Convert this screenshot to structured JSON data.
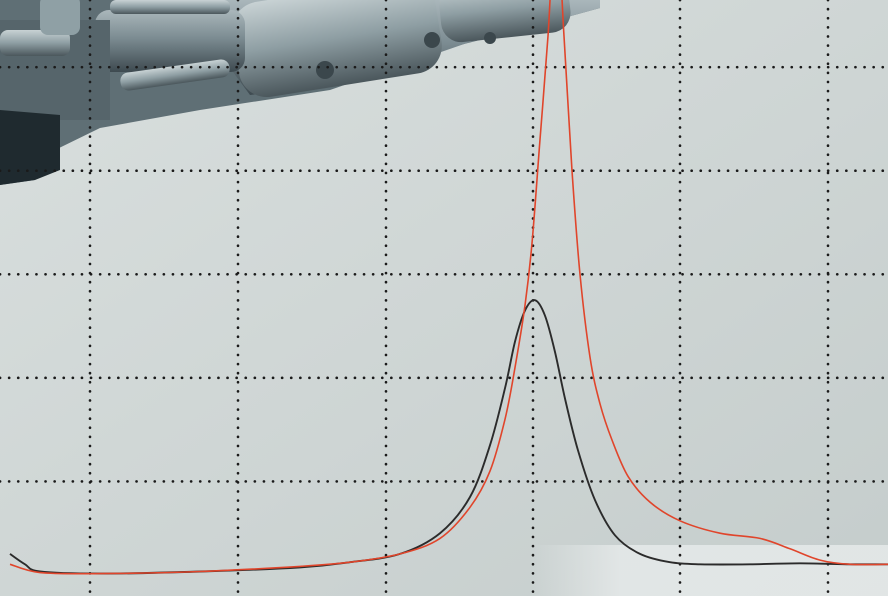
{
  "chart_data": {
    "type": "line",
    "title": "",
    "xlabel": "",
    "ylabel": "",
    "xlim": [
      0,
      888
    ],
    "ylim": [
      0,
      5.6
    ],
    "grid": true,
    "grid_style": "dotted",
    "legend": "none",
    "background_photo": "machinery-cylinder-photo",
    "colors": {
      "background": "#cfd6d5",
      "grid": "#1a1a1a",
      "series_red": "#e0452b",
      "series_black": "#2b2b2b",
      "machinery": "#7f9197"
    },
    "series": [
      {
        "color": "#e0452b",
        "x": [
          10,
          40,
          100,
          200,
          300,
          350,
          400,
          440,
          470,
          490,
          505,
          515,
          525,
          532,
          540,
          548,
          556,
          564,
          572,
          580,
          590,
          600,
          612,
          628,
          650,
          680,
          720,
          760,
          790,
          820,
          850,
          888
        ],
        "y": [
          0.2,
          0.12,
          0.11,
          0.13,
          0.18,
          0.22,
          0.3,
          0.45,
          0.75,
          1.1,
          1.6,
          2.1,
          2.7,
          3.3,
          4.3,
          5.3,
          6.5,
          5.3,
          4.0,
          3.0,
          2.2,
          1.75,
          1.4,
          1.05,
          0.8,
          0.62,
          0.5,
          0.45,
          0.35,
          0.24,
          0.2,
          0.2
        ]
      },
      {
        "color": "#2b2b2b",
        "x": [
          10,
          25,
          40,
          100,
          200,
          300,
          350,
          400,
          440,
          470,
          490,
          505,
          515,
          525,
          535,
          545,
          555,
          565,
          578,
          595,
          615,
          640,
          670,
          700,
          750,
          800,
          850,
          888
        ],
        "y": [
          0.3,
          0.2,
          0.13,
          0.11,
          0.13,
          0.17,
          0.22,
          0.3,
          0.5,
          0.85,
          1.35,
          1.9,
          2.35,
          2.65,
          2.75,
          2.6,
          2.25,
          1.8,
          1.3,
          0.82,
          0.48,
          0.3,
          0.22,
          0.2,
          0.2,
          0.21,
          0.2,
          0.2
        ]
      }
    ]
  }
}
